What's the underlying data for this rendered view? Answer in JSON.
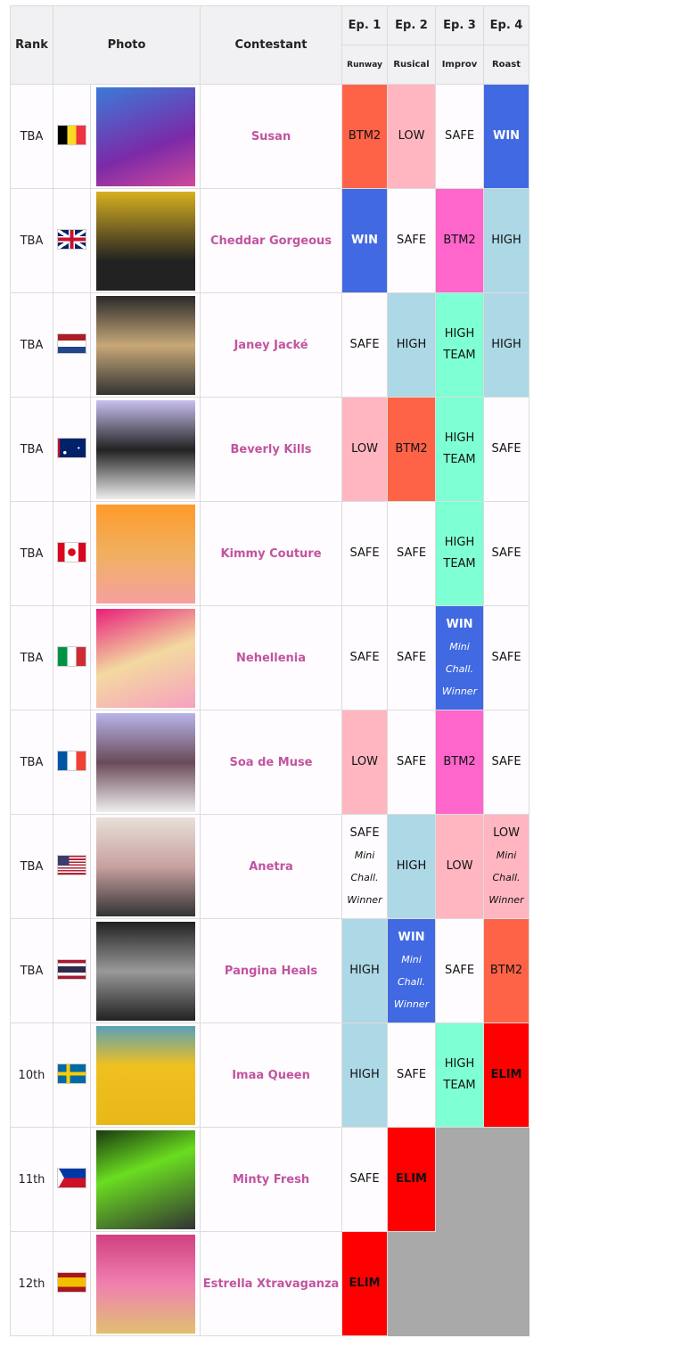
{
  "header": {
    "rank": "Rank",
    "photo": "Photo",
    "contestant": "Contestant",
    "episodes": [
      {
        "label": "Ep. 1",
        "challenge": "Runway"
      },
      {
        "label": "Ep. 2",
        "challenge": "Rusical"
      },
      {
        "label": "Ep. 3",
        "challenge": "Improv"
      },
      {
        "label": "Ep. 4",
        "challenge": "Roast"
      }
    ]
  },
  "colors": {
    "WIN": "#4169E1",
    "HIGH": "#ADD8E6",
    "HIGH TEAM": "#7FFFD4",
    "SAFE": "#FEFCFE",
    "LOW": "#FFB6C1",
    "BTM2": "#FF6347",
    "BTM2_pink": "#FF66CC",
    "ELIM": "#FF0000",
    "eliminated": "#A9A9A9",
    "name": "#C154A0"
  },
  "rows": [
    {
      "rank": "TBA",
      "flag": "belgium-flag-icon",
      "name": "Susan",
      "results": [
        {
          "text": "BTM2"
        },
        {
          "text": "LOW"
        },
        {
          "text": "SAFE"
        },
        {
          "text": "WIN"
        }
      ]
    },
    {
      "rank": "TBA",
      "flag": "uk-flag-icon",
      "name": "Cheddar Gorgeous",
      "results": [
        {
          "text": "WIN"
        },
        {
          "text": "SAFE"
        },
        {
          "text": "BTM2",
          "color": "BTM2_pink"
        },
        {
          "text": "HIGH"
        }
      ]
    },
    {
      "rank": "TBA",
      "flag": "netherlands-flag-icon",
      "name": "Janey Jacké",
      "results": [
        {
          "text": "SAFE"
        },
        {
          "text": "HIGH"
        },
        {
          "text": "HIGH TEAM"
        },
        {
          "text": "HIGH"
        }
      ]
    },
    {
      "rank": "TBA",
      "flag": "australia-flag-icon",
      "name": "Beverly Kills",
      "results": [
        {
          "text": "LOW"
        },
        {
          "text": "BTM2"
        },
        {
          "text": "HIGH TEAM"
        },
        {
          "text": "SAFE"
        }
      ]
    },
    {
      "rank": "TBA",
      "flag": "canada-flag-icon",
      "name": "Kimmy Couture",
      "results": [
        {
          "text": "SAFE"
        },
        {
          "text": "SAFE"
        },
        {
          "text": "HIGH TEAM"
        },
        {
          "text": "SAFE"
        }
      ]
    },
    {
      "rank": "TBA",
      "flag": "italy-flag-icon",
      "name": "Nehellenia",
      "results": [
        {
          "text": "SAFE"
        },
        {
          "text": "SAFE"
        },
        {
          "text": "WIN",
          "note": "Mini Chall. Winner"
        },
        {
          "text": "SAFE"
        }
      ]
    },
    {
      "rank": "TBA",
      "flag": "france-flag-icon",
      "name": "Soa de Muse",
      "results": [
        {
          "text": "LOW"
        },
        {
          "text": "SAFE"
        },
        {
          "text": "BTM2",
          "color": "BTM2_pink"
        },
        {
          "text": "SAFE"
        }
      ]
    },
    {
      "rank": "TBA",
      "flag": "usa-flag-icon",
      "name": "Anetra",
      "results": [
        {
          "text": "SAFE",
          "note": "Mini Chall. Winner"
        },
        {
          "text": "HIGH"
        },
        {
          "text": "LOW"
        },
        {
          "text": "LOW",
          "note": "Mini Chall. Winner"
        }
      ]
    },
    {
      "rank": "TBA",
      "flag": "thailand-flag-icon",
      "name": "Pangina Heals",
      "results": [
        {
          "text": "HIGH"
        },
        {
          "text": "WIN",
          "note": "Mini Chall. Winner"
        },
        {
          "text": "SAFE"
        },
        {
          "text": "BTM2"
        }
      ]
    },
    {
      "rank": "10th",
      "flag": "sweden-flag-icon",
      "name": "Imaa Queen",
      "results": [
        {
          "text": "HIGH"
        },
        {
          "text": "SAFE"
        },
        {
          "text": "HIGH TEAM"
        },
        {
          "text": "ELIM"
        }
      ]
    },
    {
      "rank": "11th",
      "flag": "philippines-flag-icon",
      "name": "Minty Fresh",
      "results": [
        {
          "text": "SAFE"
        },
        {
          "text": "ELIM"
        }
      ]
    },
    {
      "rank": "12th",
      "flag": "spain-flag-icon",
      "name": "Estrella Xtravaganza",
      "results": [
        {
          "text": "ELIM"
        }
      ]
    }
  ]
}
